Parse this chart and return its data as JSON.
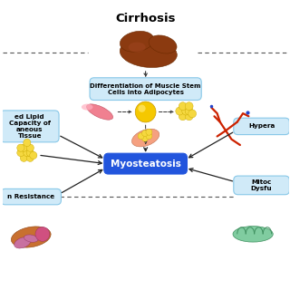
{
  "title": "Cirrhosis",
  "center_label": "Myosteatosis",
  "top_box_text": "Differentiation of Muscle Stem\nCells into Adipocytes",
  "left_top_box_text": "ed Lipid\nCapacity of\naneous\nTissue",
  "left_bot_box_text": "n Resistance",
  "right_top_box_text": "Hypera",
  "right_bot_box_text": "Mitoc\nDysfu",
  "bg_color": "#ffffff",
  "center_box_color": "#2255dd",
  "center_text_color": "#ffffff",
  "pathway_box_color": "#d0eaf8",
  "pathway_box_border": "#88c8e8",
  "title_color": "#000000",
  "arrow_color": "#222222",
  "liver_color": "#8B3A10",
  "liver_dark": "#6B2A00"
}
